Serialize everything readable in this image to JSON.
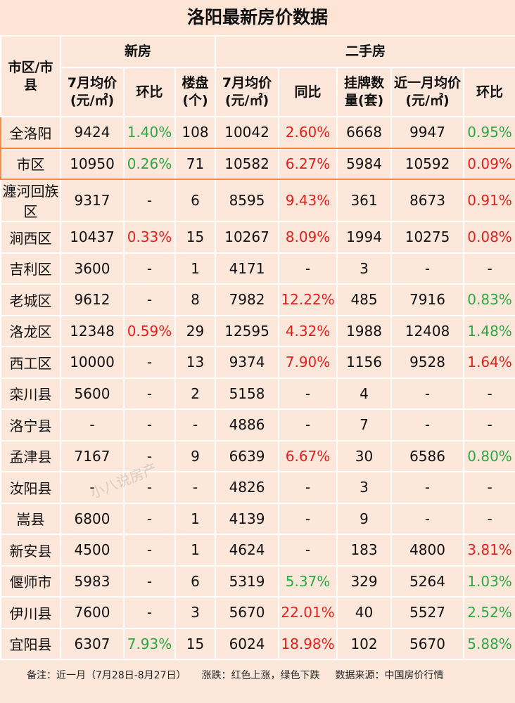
{
  "header": {
    "title": "洛阳最新房价数据"
  },
  "table": {
    "group_headers": [
      "市区/市县",
      "新房",
      "二手房"
    ],
    "column_headers": [
      "7月均价(元/㎡)",
      "环比",
      "楼盘(个)",
      "7月均价(元/㎡)",
      "同比",
      "挂牌数量(套)",
      "近一月均价(元/㎡)",
      "环比"
    ],
    "rows": [
      [
        "全洛阳",
        "9424",
        {
          "text": "1.40%",
          "color": "#2aa845"
        },
        "108",
        "10042",
        {
          "text": "2.60%",
          "color": "#e3211c"
        },
        "6668",
        "9947",
        {
          "text": "0.95%",
          "color": "#2aa845"
        }
      ],
      [
        "市区",
        "10950",
        {
          "text": "0.26%",
          "color": "#2aa845"
        },
        "71",
        "10582",
        {
          "text": "6.27%",
          "color": "#e3211c"
        },
        "5984",
        "10592",
        {
          "text": "0.09%",
          "color": "#e3211c"
        }
      ],
      [
        "瀍河回族区",
        "9317",
        "-",
        "6",
        "8595",
        {
          "text": "9.43%",
          "color": "#e3211c"
        },
        "361",
        "8673",
        {
          "text": "0.91%",
          "color": "#e3211c"
        }
      ],
      [
        "涧西区",
        "10437",
        {
          "text": "0.33%",
          "color": "#e3211c"
        },
        "15",
        "10267",
        {
          "text": "8.09%",
          "color": "#e3211c"
        },
        "1994",
        "10275",
        {
          "text": "0.08%",
          "color": "#e3211c"
        }
      ],
      [
        "吉利区",
        "3600",
        "-",
        "1",
        "4171",
        "-",
        "3",
        "-",
        "-"
      ],
      [
        "老城区",
        "9612",
        "-",
        "8",
        "7982",
        {
          "text": "12.22%",
          "color": "#e3211c"
        },
        "485",
        "7916",
        {
          "text": "0.83%",
          "color": "#2aa845"
        }
      ],
      [
        "洛龙区",
        "12348",
        {
          "text": "0.59%",
          "color": "#e3211c"
        },
        "29",
        "12595",
        {
          "text": "4.32%",
          "color": "#e3211c"
        },
        "1988",
        "12408",
        {
          "text": "1.48%",
          "color": "#2aa845"
        }
      ],
      [
        "西工区",
        "10000",
        "-",
        "13",
        "9374",
        {
          "text": "7.90%",
          "color": "#e3211c"
        },
        "1156",
        "9528",
        {
          "text": "1.64%",
          "color": "#e3211c"
        }
      ],
      [
        "栾川县",
        "5600",
        "-",
        "2",
        "5158",
        "-",
        "4",
        "-",
        "-"
      ],
      [
        "洛宁县",
        "-",
        "-",
        "-",
        "4886",
        "-",
        "7",
        "-",
        "-"
      ],
      [
        "孟津县",
        "7167",
        "-",
        "9",
        "6639",
        {
          "text": "6.67%",
          "color": "#e3211c"
        },
        "30",
        "6586",
        {
          "text": "0.80%",
          "color": "#2aa845"
        }
      ],
      [
        "汝阳县",
        "-",
        "-",
        "-",
        "4826",
        "-",
        "3",
        "-",
        "-"
      ],
      [
        "嵩县",
        "6800",
        "-",
        "1",
        "4139",
        "-",
        "9",
        "-",
        "-"
      ],
      [
        "新安县",
        "4500",
        "-",
        "1",
        "4624",
        "-",
        "183",
        "4800",
        {
          "text": "3.81%",
          "color": "#e3211c"
        }
      ],
      [
        "偃师市",
        "5983",
        "-",
        "6",
        "5319",
        {
          "text": "5.37%",
          "color": "#2aa845"
        },
        "329",
        "5264",
        {
          "text": "1.03%",
          "color": "#2aa845"
        }
      ],
      [
        "伊川县",
        "7600",
        "-",
        "3",
        "5670",
        {
          "text": "22.01%",
          "color": "#e3211c"
        },
        "40",
        "5527",
        {
          "text": "2.52%",
          "color": "#2aa845"
        }
      ],
      [
        "宜阳县",
        "6307",
        {
          "text": "7.93%",
          "color": "#2aa845"
        },
        "15",
        "6024",
        {
          "text": "18.98%",
          "color": "#e3211c"
        },
        "102",
        "5670",
        {
          "text": "5.88%",
          "color": "#2aa845"
        }
      ]
    ]
  },
  "footer": {
    "note": "备注：近一月（7月28日-8月27日）",
    "legend": "涨跌：红色上涨，绿色下跌",
    "source": "数据来源：中国房价行情"
  },
  "watermark": "小八说房产"
}
